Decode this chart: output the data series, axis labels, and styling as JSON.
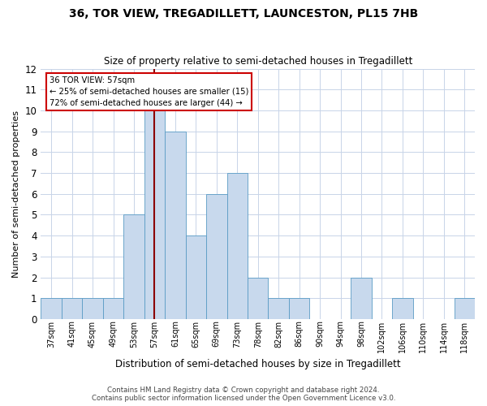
{
  "title": "36, TOR VIEW, TREGADILLETT, LAUNCESTON, PL15 7HB",
  "subtitle": "Size of property relative to semi-detached houses in Tregadillett",
  "xlabel": "Distribution of semi-detached houses by size in Tregadillett",
  "ylabel": "Number of semi-detached properties",
  "footer_line1": "Contains HM Land Registry data © Crown copyright and database right 2024.",
  "footer_line2": "Contains public sector information licensed under the Open Government Licence v3.0.",
  "categories": [
    "37sqm",
    "41sqm",
    "45sqm",
    "49sqm",
    "53sqm",
    "57sqm",
    "61sqm",
    "65sqm",
    "69sqm",
    "73sqm",
    "78sqm",
    "82sqm",
    "86sqm",
    "90sqm",
    "94sqm",
    "98sqm",
    "102sqm",
    "106sqm",
    "110sqm",
    "114sqm",
    "118sqm"
  ],
  "values": [
    1,
    1,
    1,
    1,
    5,
    10,
    9,
    4,
    6,
    7,
    2,
    1,
    1,
    0,
    0,
    2,
    0,
    1,
    0,
    0,
    1
  ],
  "highlight_index": 5,
  "bar_color": "#c8d9ed",
  "bar_edge_color": "#5a9cc5",
  "highlight_line_color": "#8b0000",
  "ylim": [
    0,
    12
  ],
  "yticks": [
    0,
    1,
    2,
    3,
    4,
    5,
    6,
    7,
    8,
    9,
    10,
    11,
    12
  ],
  "annotation_text_line1": "36 TOR VIEW: 57sqm",
  "annotation_text_line2": "← 25% of semi-detached houses are smaller (15)",
  "annotation_text_line3": "72% of semi-detached houses are larger (44) →",
  "bg_color": "#ffffff",
  "grid_color": "#c8d4e8"
}
